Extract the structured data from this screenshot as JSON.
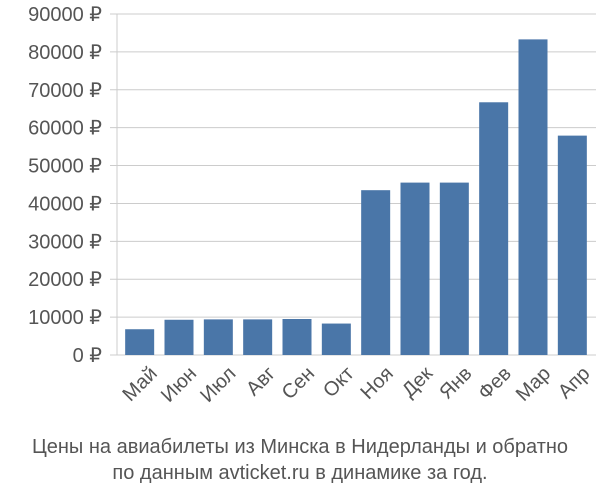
{
  "chart_data": {
    "type": "bar",
    "categories": [
      "Май",
      "Июн",
      "Июл",
      "Авг",
      "Сен",
      "Окт",
      "Ноя",
      "Дек",
      "Янв",
      "Фев",
      "Мар",
      "Апр"
    ],
    "values": [
      6800,
      9300,
      9400,
      9400,
      9500,
      8300,
      43500,
      45500,
      45500,
      66700,
      83300,
      57900
    ],
    "ylim": [
      0,
      90000
    ],
    "yticks": [
      0,
      10000,
      20000,
      30000,
      40000,
      50000,
      60000,
      70000,
      80000,
      90000
    ],
    "ytick_labels": [
      "0 ₽",
      "10000 ₽",
      "20000 ₽",
      "30000 ₽",
      "40000 ₽",
      "50000 ₽",
      "60000 ₽",
      "70000 ₽",
      "80000 ₽",
      "90000 ₽"
    ],
    "bar_color": "#4a76a8",
    "grid_color": "#cccccc",
    "grid": true,
    "legend": "none"
  },
  "caption": {
    "line1": "Цены на авиабилеты из Минска в Нидерланды и обратно",
    "line2": "по данным avticket.ru в динамике за год."
  }
}
